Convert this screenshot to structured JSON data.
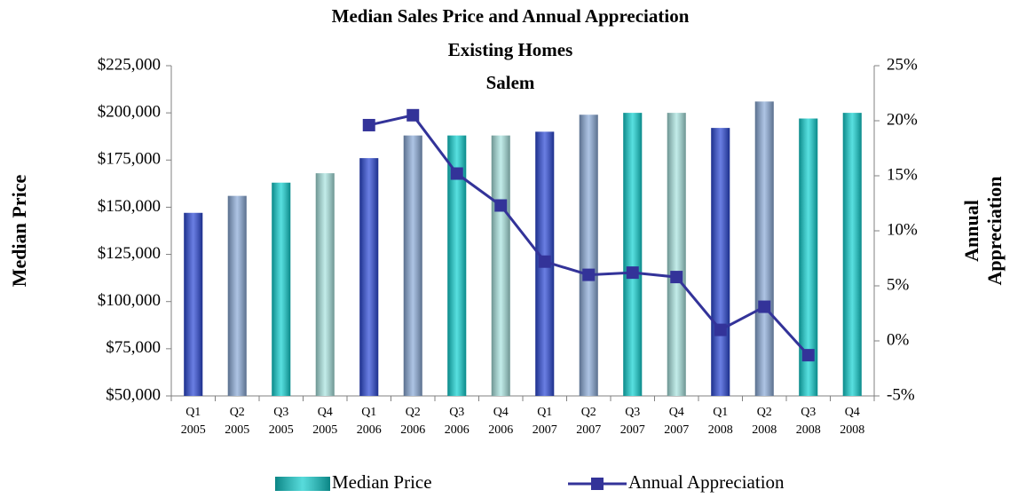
{
  "chart_data": {
    "type": "bar_line",
    "title": "Median Sales Price and Annual Appreciation",
    "subtitle": "Existing Homes",
    "location": "Salem",
    "y_label": "Median Price",
    "y2_label": "Annual Appreciation",
    "categories": [
      "Q1 2005",
      "Q2 2005",
      "Q3 2005",
      "Q4 2005",
      "Q1 2006",
      "Q2 2006",
      "Q3 2006",
      "Q4 2006",
      "Q1 2007",
      "Q2 2007",
      "Q3 2007",
      "Q4 2007",
      "Q1 2008",
      "Q2 2008",
      "Q3 2008",
      "Q4 2008"
    ],
    "series": [
      {
        "name": "Median Price",
        "type": "bar",
        "color": "#10cccc",
        "colors": [
          "#2a47d6",
          "#8aaad8",
          "#10d2d2",
          "#a8e4e0",
          "#2a47d6",
          "#8aaad8",
          "#10d2d2",
          "#a8e4e0",
          "#2a47d6",
          "#8aaad8",
          "#10d2d2",
          "#a8e4e0",
          "#2a47d6",
          "#8aaad8",
          "#10d2d2",
          "#10d2d2"
        ],
        "values": [
          147000,
          156000,
          163000,
          168000,
          176000,
          188000,
          188000,
          188000,
          190000,
          199000,
          200000,
          200000,
          192000,
          206000,
          197000,
          200000
        ]
      },
      {
        "name": "Annual Appreciation",
        "type": "line",
        "axis": "y2",
        "color": "#333399",
        "values": [
          null,
          null,
          null,
          null,
          19.6,
          20.5,
          15.2,
          12.3,
          7.2,
          6.0,
          6.2,
          5.8,
          1.0,
          3.1,
          -1.3,
          null
        ]
      }
    ],
    "ylim": [
      50000,
      225000
    ],
    "yticks": [
      {
        "value": 50000,
        "label": "$50,000"
      },
      {
        "value": 75000,
        "label": "$75,000"
      },
      {
        "value": 100000,
        "label": "$100,000"
      },
      {
        "value": 125000,
        "label": "$125,000"
      },
      {
        "value": 150000,
        "label": "$150,000"
      },
      {
        "value": 175000,
        "label": "$175,000"
      },
      {
        "value": 200000,
        "label": "$200,000"
      },
      {
        "value": 225000,
        "label": "$225,000"
      }
    ],
    "y2lim": [
      -5,
      25
    ],
    "y2ticks": [
      {
        "value": -5,
        "label": "-5%"
      },
      {
        "value": 0,
        "label": "0%"
      },
      {
        "value": 5,
        "label": "5%"
      },
      {
        "value": 10,
        "label": "10%"
      },
      {
        "value": 15,
        "label": "15%"
      },
      {
        "value": 20,
        "label": "20%"
      },
      {
        "value": 25,
        "label": "25%"
      }
    ],
    "grid": false,
    "legend": "bottom"
  }
}
